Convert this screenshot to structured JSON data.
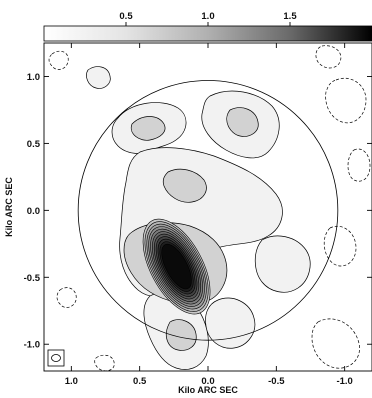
{
  "chart_data": {
    "type": "contour",
    "xlabel": "Kilo ARC SEC",
    "ylabel": "Kilo ARC SEC",
    "x_range": [
      1.2,
      -1.2
    ],
    "y_range": [
      -1.2,
      1.25
    ],
    "x_ticks": [
      1.0,
      0.5,
      0.0,
      -0.5,
      -1.0
    ],
    "x_tick_labels": [
      "1.0",
      "0.5",
      "0.0",
      "-0.5",
      "-1.0"
    ],
    "y_ticks": [
      1.0,
      0.5,
      0.0,
      -0.5,
      -1.0
    ],
    "y_tick_labels": [
      "1.0",
      "0.5",
      "0.0",
      "-0.5",
      "-1.0"
    ],
    "colorbar": {
      "range": [
        0,
        2.0
      ],
      "ticks": [
        0.5,
        1.0,
        1.5
      ],
      "tick_labels": [
        "0.5",
        "1.0",
        "1.5"
      ],
      "colormap": "white-to-black"
    },
    "circle": {
      "center": [
        0.0,
        0.0
      ],
      "radius": 0.95
    },
    "peak": {
      "x": 0.23,
      "y": -0.42,
      "value": 1.9
    },
    "beam_marker": "bottom-left",
    "grid": false
  }
}
